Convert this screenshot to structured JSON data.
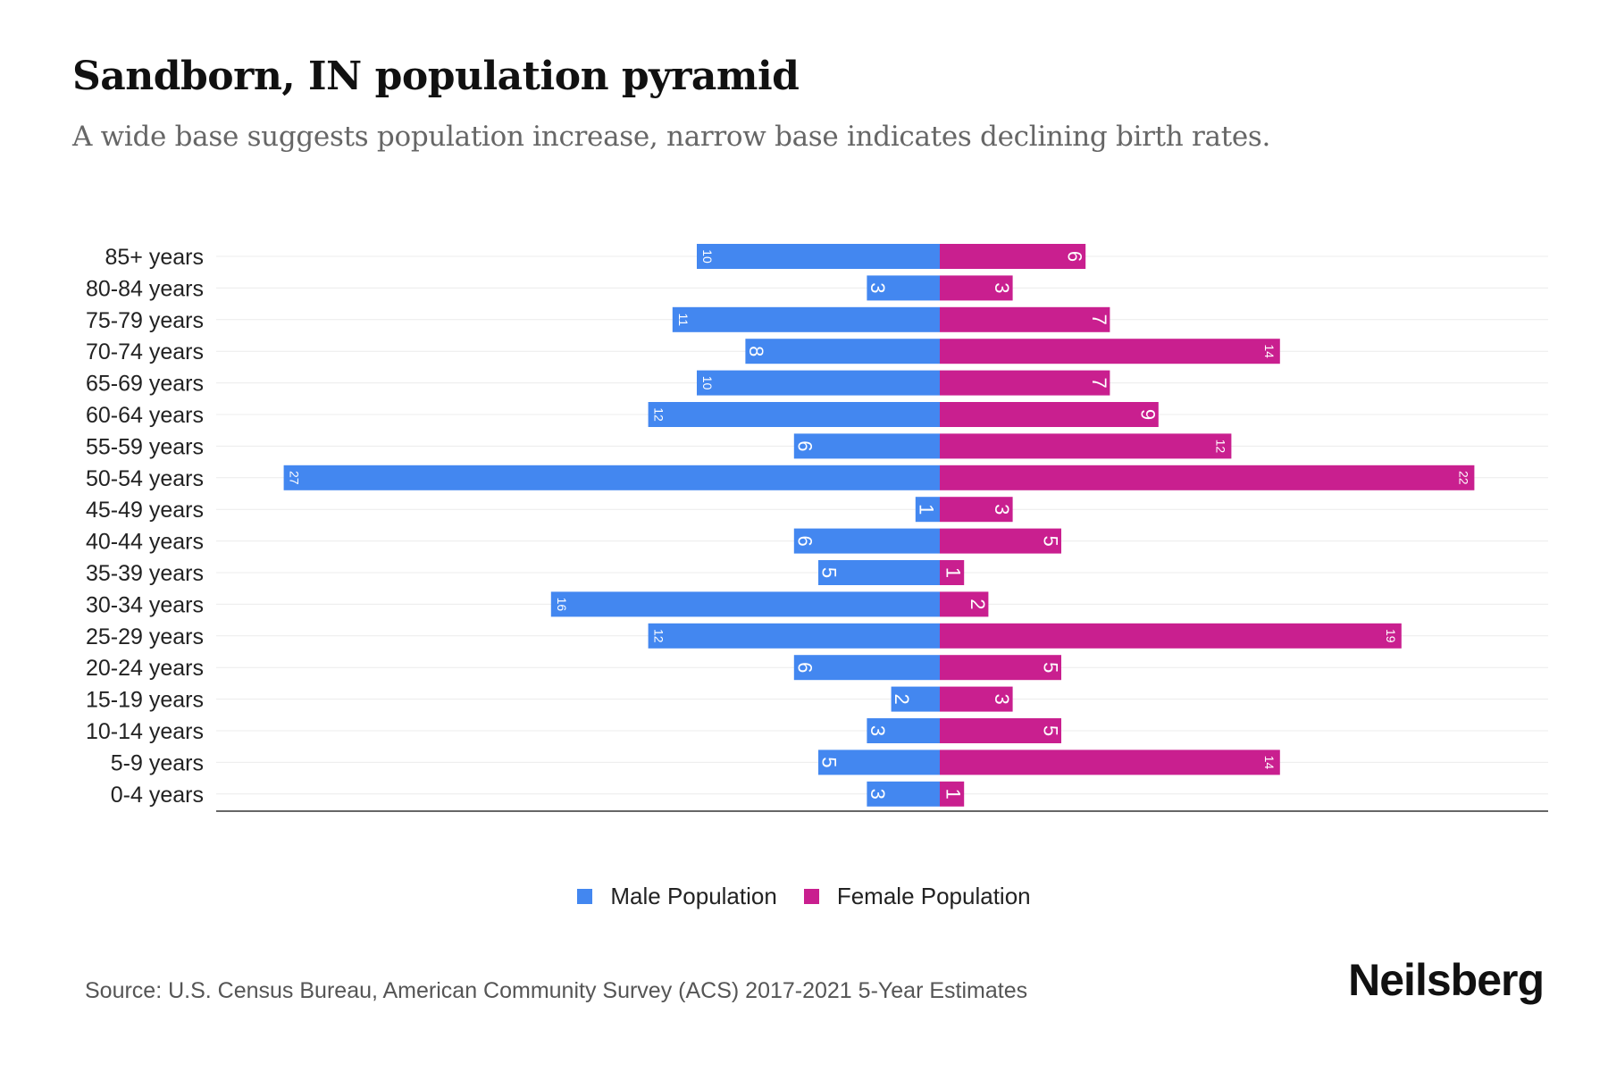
{
  "title": "Sandborn, IN population pyramid",
  "subtitle": "A wide base suggests population increase, narrow base indicates declining birth rates.",
  "source": "Source: U.S. Census Bureau, American Community Survey (ACS) 2017-2021 5-Year Estimates",
  "logo": "Neilsberg",
  "colors": {
    "male": "#4387f0",
    "female": "#c91f8f"
  },
  "chart_data": {
    "type": "bar",
    "orientation": "horizontal-pyramid",
    "categories": [
      "85+ years",
      "80-84 years",
      "75-79 years",
      "70-74 years",
      "65-69 years",
      "60-64 years",
      "55-59 years",
      "50-54 years",
      "45-49 years",
      "40-44 years",
      "35-39 years",
      "30-34 years",
      "25-29 years",
      "20-24 years",
      "15-19 years",
      "10-14 years",
      "5-9 years",
      "0-4 years"
    ],
    "series": [
      {
        "name": "Male Population",
        "values": [
          10,
          3,
          11,
          8,
          10,
          12,
          6,
          27,
          1,
          6,
          5,
          16,
          12,
          6,
          2,
          3,
          5,
          3
        ]
      },
      {
        "name": "Female Population",
        "values": [
          6,
          3,
          7,
          14,
          7,
          9,
          12,
          22,
          3,
          5,
          1,
          2,
          19,
          5,
          3,
          5,
          14,
          1
        ]
      }
    ],
    "legend": "bottom-center",
    "grid": true
  }
}
